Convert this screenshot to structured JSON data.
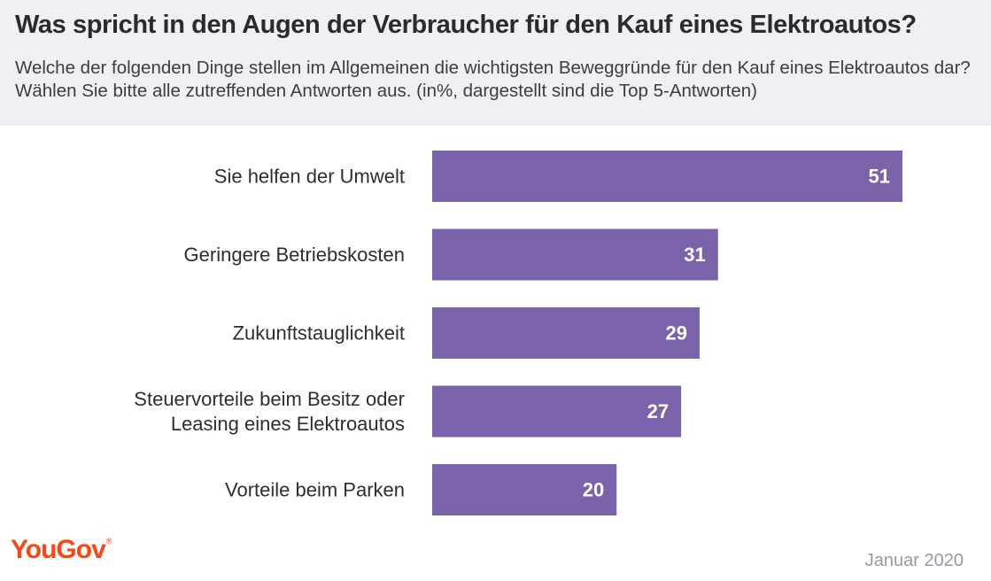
{
  "header": {
    "title": "Was spricht in den Augen der Verbraucher für den Kauf eines Elektroautos?",
    "subtitle": "Welche der folgenden Dinge stellen im Allgemeinen die wichtigsten Beweggründe für den Kauf eines Elektroautos dar? Wählen Sie bitte alle zutreffenden Antworten aus. (in%, dargestellt sind die Top 5-Antworten)"
  },
  "colors": {
    "bar": "#7a63ab",
    "header_bg": "#f1eff5",
    "brand": "#fa4616"
  },
  "chart_data": {
    "type": "bar",
    "orientation": "horizontal",
    "unit": "%",
    "categories": [
      "Sie helfen der Umwelt",
      "Geringere Betriebskosten",
      "Zukunftstauglichkeit",
      "Steuervorteile beim Besitz oder Leasing eines Elektroautos",
      "Vorteile beim Parken"
    ],
    "category_lines": [
      [
        "Sie helfen der Umwelt"
      ],
      [
        "Geringere Betriebskosten"
      ],
      [
        "Zukunftstauglichkeit"
      ],
      [
        "Steuervorteile beim Besitz oder",
        "Leasing eines Elektroautos"
      ],
      [
        "Vorteile beim Parken"
      ]
    ],
    "values": [
      51,
      31,
      29,
      27,
      20
    ],
    "xlim": [
      0,
      51
    ],
    "grid": false,
    "data_labels": true
  },
  "footer": {
    "logo": "YouGov",
    "logo_mark": "®",
    "date": "Januar 2020"
  }
}
